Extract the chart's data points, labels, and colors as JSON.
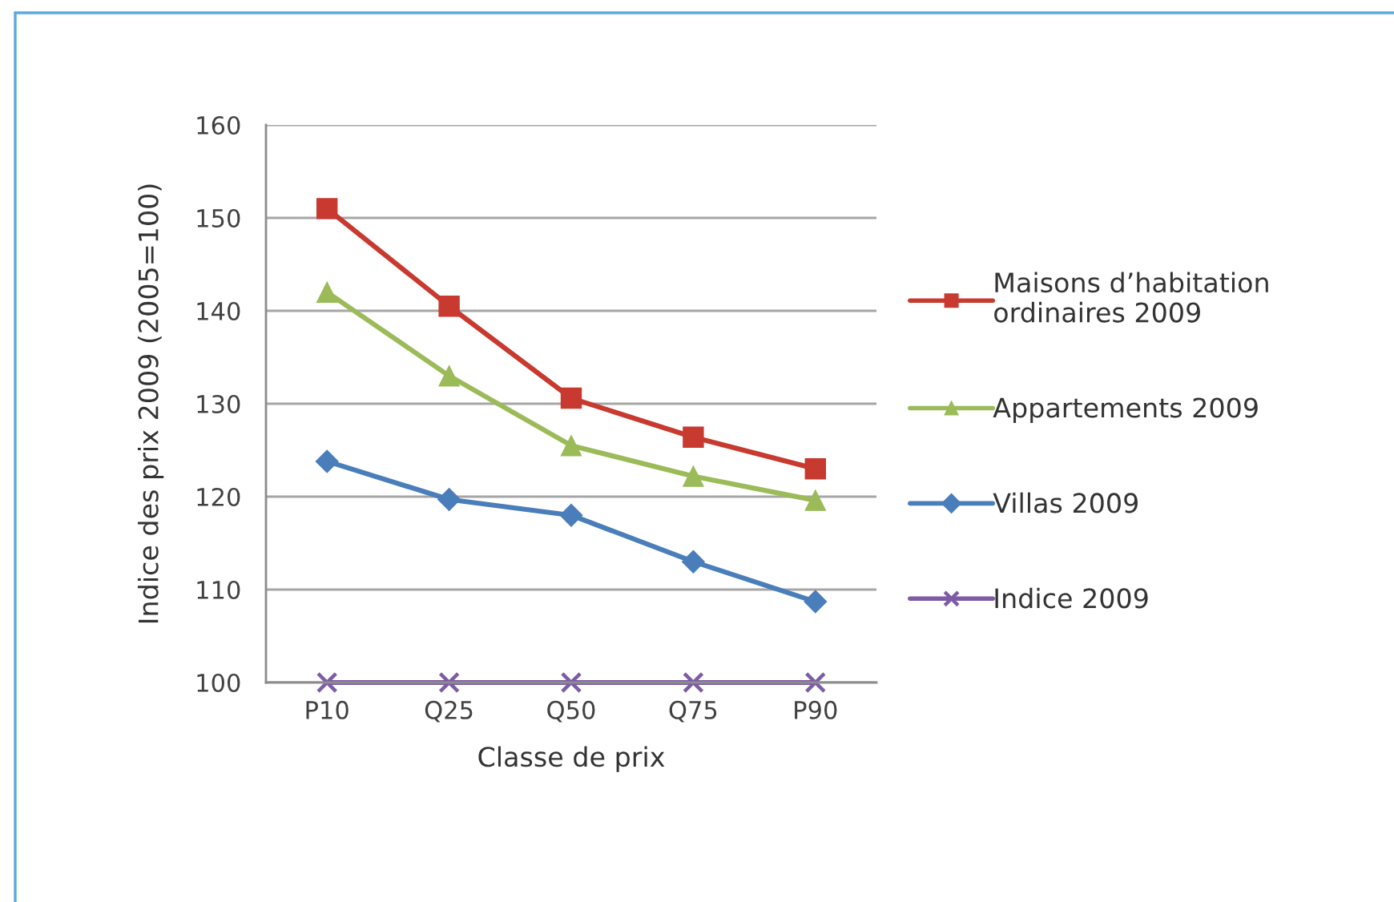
{
  "chart_data": {
    "type": "line",
    "xlabel": "Classe de prix",
    "ylabel": "Indice des prix 2009 (2005=100)",
    "categories": [
      "P10",
      "Q25",
      "Q50",
      "Q75",
      "P90"
    ],
    "series": [
      {
        "name": "Maisons d’habitation\nordinaires 2009",
        "color": "#c8392f",
        "marker": "square",
        "values": [
          151,
          140.5,
          130.6,
          126.4,
          123
        ]
      },
      {
        "name": "Appartements 2009",
        "color": "#9bbb59",
        "marker": "triangle",
        "values": [
          142,
          133,
          125.5,
          122.2,
          119.6
        ]
      },
      {
        "name": "Villas 2009",
        "color": "#4a7ebb",
        "marker": "diamond",
        "values": [
          123.8,
          119.7,
          118,
          113,
          108.7
        ]
      },
      {
        "name": "Indice 2009",
        "color": "#7d5ba6",
        "marker": "cross",
        "values": [
          100,
          100,
          100,
          100,
          100
        ]
      }
    ],
    "ylim": [
      100,
      160
    ],
    "yticks": [
      100,
      110,
      120,
      130,
      140,
      150,
      160
    ],
    "grid": "y",
    "legend": "right"
  }
}
